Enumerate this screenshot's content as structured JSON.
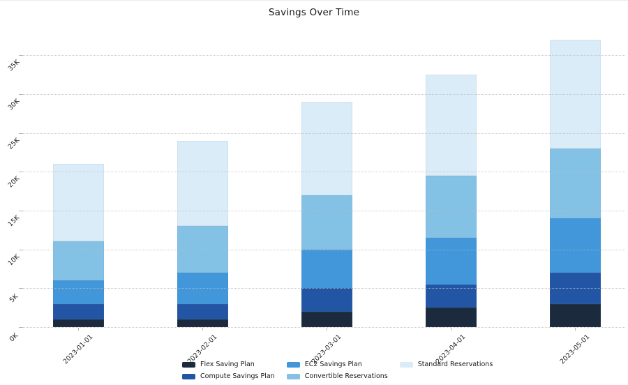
{
  "chart_data": {
    "type": "bar",
    "stacked": true,
    "title": "Savings Over Time",
    "categories": [
      "2023-01-01",
      "2023-02-01",
      "2023-03-01",
      "2023-04-01",
      "2023-05-01"
    ],
    "series": [
      {
        "name": "Flex Saving Plan",
        "color": "#1b2a3d",
        "values": [
          1000,
          1000,
          2000,
          2500,
          3000
        ]
      },
      {
        "name": "Compute Savings Plan",
        "color": "#2256a5",
        "values": [
          2000,
          2000,
          3000,
          3000,
          4000
        ]
      },
      {
        "name": "EC2 Savings Plan",
        "color": "#4197d9",
        "values": [
          3000,
          4000,
          5000,
          6000,
          7000
        ]
      },
      {
        "name": "Convertible Reservations",
        "color": "#84c2e5",
        "values": [
          5000,
          6000,
          7000,
          8000,
          9000
        ]
      },
      {
        "name": "Standard Reservations",
        "color": "#dbecf9",
        "values": [
          10000,
          11000,
          12000,
          13000,
          14000
        ]
      }
    ],
    "stack_totals": [
      21000,
      24000,
      29000,
      32500,
      37000
    ],
    "y_ticks": [
      "0K",
      "5K",
      "10K",
      "15K",
      "20K",
      "25K",
      "30K",
      "35K"
    ],
    "y_tick_values": [
      0,
      5000,
      10000,
      15000,
      20000,
      25000,
      30000,
      35000
    ],
    "ylim": [
      0,
      38500
    ],
    "grid": "horizontal-dotted",
    "legend_position": "bottom-center",
    "legend_columns": 3
  }
}
